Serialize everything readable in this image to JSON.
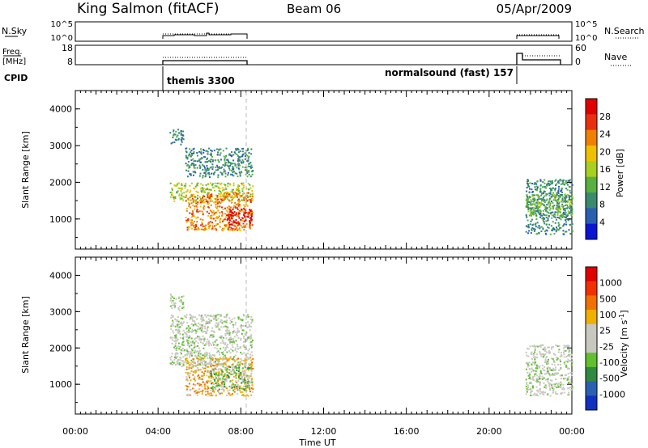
{
  "header": {
    "station": "King Salmon (fitACF)",
    "beam": "Beam 06",
    "date": "05/Apr/2009"
  },
  "strips": {
    "nsky_label": "N.Sky",
    "nsky_ticks": [
      "10^5",
      "10^0"
    ],
    "nsearch_label": "N.Search",
    "nsearch_ticks": [
      "10^5",
      "10^0"
    ],
    "freq_label_1": "Freq.",
    "freq_label_2": "[MHz]",
    "freq_ticks": [
      "18",
      "8"
    ],
    "nave_label": "Nave",
    "nave_ticks": [
      "60",
      "0"
    ],
    "cpid_label": "CPID",
    "cpid_segments": [
      {
        "label": "themis 3300",
        "start_hour": 4.5,
        "end_hour": 8.55
      },
      {
        "label": "normalsound (fast) 157",
        "start_hour": 21.75,
        "end_hour": 24.0
      }
    ]
  },
  "x_axis": {
    "label": "Time UT",
    "ticks": [
      "00:00",
      "04:00",
      "08:00",
      "12:00",
      "16:00",
      "20:00",
      "00:00"
    ]
  },
  "panels": [
    {
      "id": "power",
      "ylabel": "Slant Range [km]",
      "yticks": [
        "4000",
        "3000",
        "2000",
        "1000"
      ],
      "colorbar_label": "Power [dB]",
      "colorbar_ticks": [
        "28",
        "24",
        "20",
        "16",
        "12",
        "8",
        "4"
      ],
      "colors": [
        "#0a14d2",
        "#2a5fb0",
        "#3a8a70",
        "#58b040",
        "#a8d020",
        "#f0c000",
        "#f08000",
        "#e83010",
        "#e00000"
      ]
    },
    {
      "id": "velocity",
      "ylabel": "Slant Range [km]",
      "yticks": [
        "4000",
        "3000",
        "2000",
        "1000"
      ],
      "colorbar_label": "Velocity [m s^-1]",
      "colorbar_ticks": [
        "1000",
        "500",
        "100",
        "25",
        "-25",
        "-100",
        "-500",
        "-1000"
      ],
      "colors": [
        "#1030c0",
        "#2a60b0",
        "#2f8a40",
        "#60c030",
        "#c8c8c0",
        "#c8c8c0",
        "#f0b000",
        "#f07000",
        "#f03000",
        "#e00000"
      ]
    }
  ],
  "chart_data": [
    {
      "type": "heatmap",
      "title": "Power",
      "xlabel": "Time UT",
      "ylabel": "Slant Range [km]",
      "xlim": [
        0,
        24
      ],
      "ylim": [
        180,
        4500
      ],
      "colorbar": {
        "label": "Power [dB]",
        "range": [
          0,
          32
        ],
        "ticks": [
          4,
          8,
          12,
          16,
          20,
          24,
          28
        ]
      },
      "regions": [
        {
          "t_start": 4.55,
          "t_end": 5.2,
          "range_km": [
            3050,
            3500
          ],
          "power_db": 8
        },
        {
          "t_start": 5.3,
          "t_end": 8.55,
          "range_km": [
            2150,
            2950
          ],
          "power_db": 6
        },
        {
          "t_start": 4.55,
          "t_end": 8.55,
          "range_km": [
            1500,
            2000
          ],
          "power_db": 14
        },
        {
          "t_start": 5.3,
          "t_end": 8.55,
          "range_km": [
            700,
            1750
          ],
          "power_db": 24
        },
        {
          "t_start": 7.3,
          "t_end": 8.55,
          "range_km": [
            850,
            1300
          ],
          "power_db": 30
        },
        {
          "t_start": 21.75,
          "t_end": 24.0,
          "range_km": [
            600,
            2100
          ],
          "power_db": 7
        },
        {
          "t_start": 21.75,
          "t_end": 24.0,
          "range_km": [
            1100,
            1700
          ],
          "power_db": 10
        }
      ]
    },
    {
      "type": "heatmap",
      "title": "Velocity",
      "xlabel": "Time UT",
      "ylabel": "Slant Range [km]",
      "xlim": [
        0,
        24
      ],
      "ylim": [
        180,
        4500
      ],
      "colorbar": {
        "label": "Velocity [m s^-1]",
        "ticks": [
          1000,
          500,
          100,
          25,
          -25,
          -100,
          -500,
          -1000
        ]
      },
      "regions": [
        {
          "t_start": 4.55,
          "t_end": 5.2,
          "range_km": [
            3050,
            3500
          ],
          "velocity_ms": 0
        },
        {
          "t_start": 4.55,
          "t_end": 8.55,
          "range_km": [
            1500,
            2950
          ],
          "velocity_ms": 0
        },
        {
          "t_start": 5.3,
          "t_end": 8.55,
          "range_km": [
            700,
            1750
          ],
          "velocity_ms": -100
        },
        {
          "t_start": 6.5,
          "t_end": 8.55,
          "range_km": [
            850,
            1500
          ],
          "velocity_ms": 150
        },
        {
          "t_start": 21.75,
          "t_end": 24.0,
          "range_km": [
            700,
            2100
          ],
          "velocity_ms": 0
        }
      ]
    }
  ]
}
